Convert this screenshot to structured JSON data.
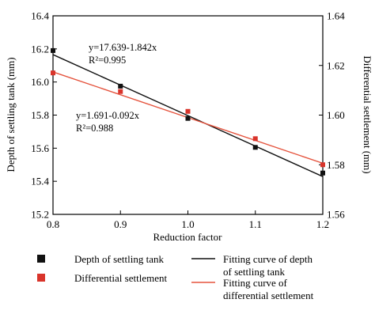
{
  "chart_data": {
    "type": "scatter",
    "x": [
      0.8,
      0.9,
      1.0,
      1.1,
      1.2
    ],
    "xlim": [
      0.8,
      1.2
    ],
    "xticks": [
      "0.8",
      "0.9",
      "1.0",
      "1.1",
      "1.2"
    ],
    "xlabel": "Reduction factor",
    "y_left": {
      "label": "Depth of settling tank (mm)",
      "lim": [
        15.2,
        16.4
      ],
      "ticks": [
        "15.2",
        "15.4",
        "15.6",
        "15.8",
        "16.0",
        "16.2",
        "16.4"
      ]
    },
    "y_right": {
      "label": "Differential settlement (mm)",
      "lim": [
        1.56,
        1.64
      ],
      "ticks": [
        "1.56",
        "1.58",
        "1.60",
        "1.62",
        "1.64"
      ]
    },
    "series": [
      {
        "name": "Depth of settling tank",
        "axis": "left",
        "marker": "square",
        "color": "#111111",
        "values": [
          16.19,
          15.975,
          15.78,
          15.605,
          15.45
        ]
      },
      {
        "name": "Differential settlement",
        "axis": "right",
        "marker": "square",
        "color": "#d9342b",
        "values": [
          1.617,
          1.6095,
          1.6015,
          1.5905,
          1.58
        ]
      }
    ],
    "fits": [
      {
        "name": "Fitting curve of depth of settling tank",
        "axis": "left",
        "color": "#111111",
        "slope": -1.842,
        "intercept": 17.639,
        "equation": "y=17.639-1.842x",
        "r2": "R²=0.995"
      },
      {
        "name": "Fitting curve of differential settlement",
        "axis": "right",
        "color": "#e5533d",
        "slope": -0.092,
        "intercept": 1.691,
        "equation": "y=1.691-0.092x",
        "r2": "R²=0.988"
      }
    ],
    "legend": {
      "placement": "bottom",
      "items": [
        {
          "label_lines": [
            "Depth of settling tank"
          ],
          "kind": "marker",
          "color": "#111111"
        },
        {
          "label_lines": [
            "Differential settlement"
          ],
          "kind": "marker",
          "color": "#d9342b"
        },
        {
          "label_lines": [
            "Fitting curve of depth",
            "of settling tank"
          ],
          "kind": "line",
          "color": "#111111"
        },
        {
          "label_lines": [
            "Fitting curve of",
            "differential settlement"
          ],
          "kind": "line",
          "color": "#e5533d"
        }
      ]
    }
  }
}
